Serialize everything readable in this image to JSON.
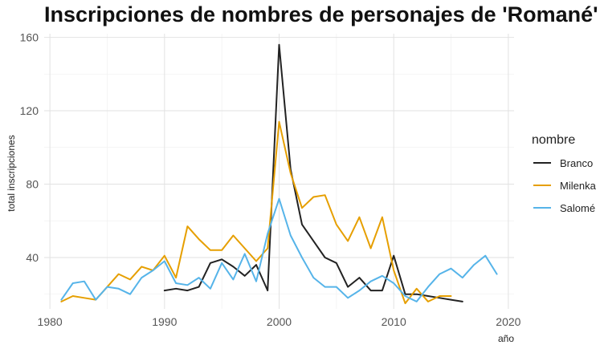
{
  "chart_data": {
    "type": "line",
    "title": "Inscripciones de nombres de personajes de 'Romané'",
    "xlabel": "año",
    "ylabel": "total inscripciones",
    "xlim": [
      1979.5,
      2020.5
    ],
    "ylim": [
      12,
      162
    ],
    "x_ticks": [
      1980,
      1990,
      2000,
      2010,
      2020
    ],
    "y_ticks": [
      40,
      80,
      120,
      160
    ],
    "grid": true,
    "legend": {
      "title": "nombre",
      "position": "right"
    },
    "series": [
      {
        "name": "Branco",
        "color": "#222222",
        "x": [
          1990,
          1991,
          1992,
          1993,
          1994,
          1995,
          1996,
          1997,
          1998,
          1999,
          2000,
          2001,
          2002,
          2003,
          2004,
          2005,
          2006,
          2007,
          2008,
          2009,
          2010,
          2011,
          2012,
          2013,
          2014,
          2015,
          2016
        ],
        "y": [
          22,
          23,
          22,
          24,
          37,
          39,
          35,
          30,
          36,
          22,
          156,
          88,
          58,
          49,
          40,
          37,
          24,
          29,
          22,
          22,
          41,
          20,
          20,
          19,
          18,
          17,
          16
        ]
      },
      {
        "name": "Milenka",
        "color": "#E69F00",
        "x": [
          1981,
          1982,
          1983,
          1984,
          1985,
          1986,
          1987,
          1988,
          1989,
          1990,
          1991,
          1992,
          1993,
          1994,
          1995,
          1996,
          1997,
          1998,
          1999,
          2000,
          2001,
          2002,
          2003,
          2004,
          2005,
          2006,
          2007,
          2008,
          2009,
          2010,
          2011,
          2012,
          2013,
          2014,
          2015
        ],
        "y": [
          16,
          19,
          18,
          17,
          24,
          31,
          28,
          35,
          33,
          41,
          29,
          57,
          50,
          44,
          44,
          52,
          45,
          38,
          45,
          114,
          86,
          67,
          73,
          74,
          58,
          49,
          62,
          45,
          62,
          33,
          15,
          23,
          16,
          19,
          19
        ]
      },
      {
        "name": "Salomé",
        "color": "#56B4E9",
        "x": [
          1981,
          1982,
          1983,
          1984,
          1985,
          1986,
          1987,
          1988,
          1989,
          1990,
          1991,
          1992,
          1993,
          1994,
          1995,
          1996,
          1997,
          1998,
          1999,
          2000,
          2001,
          2002,
          2003,
          2004,
          2005,
          2006,
          2007,
          2008,
          2009,
          2010,
          2011,
          2012,
          2013,
          2014,
          2015,
          2016,
          2017,
          2018,
          2019
        ],
        "y": [
          17,
          26,
          27,
          17,
          24,
          23,
          20,
          29,
          33,
          38,
          26,
          25,
          29,
          23,
          37,
          28,
          42,
          27,
          53,
          72,
          52,
          40,
          29,
          24,
          24,
          18,
          22,
          27,
          30,
          26,
          19,
          16,
          24,
          31,
          34,
          29,
          36,
          41,
          31
        ]
      }
    ]
  }
}
